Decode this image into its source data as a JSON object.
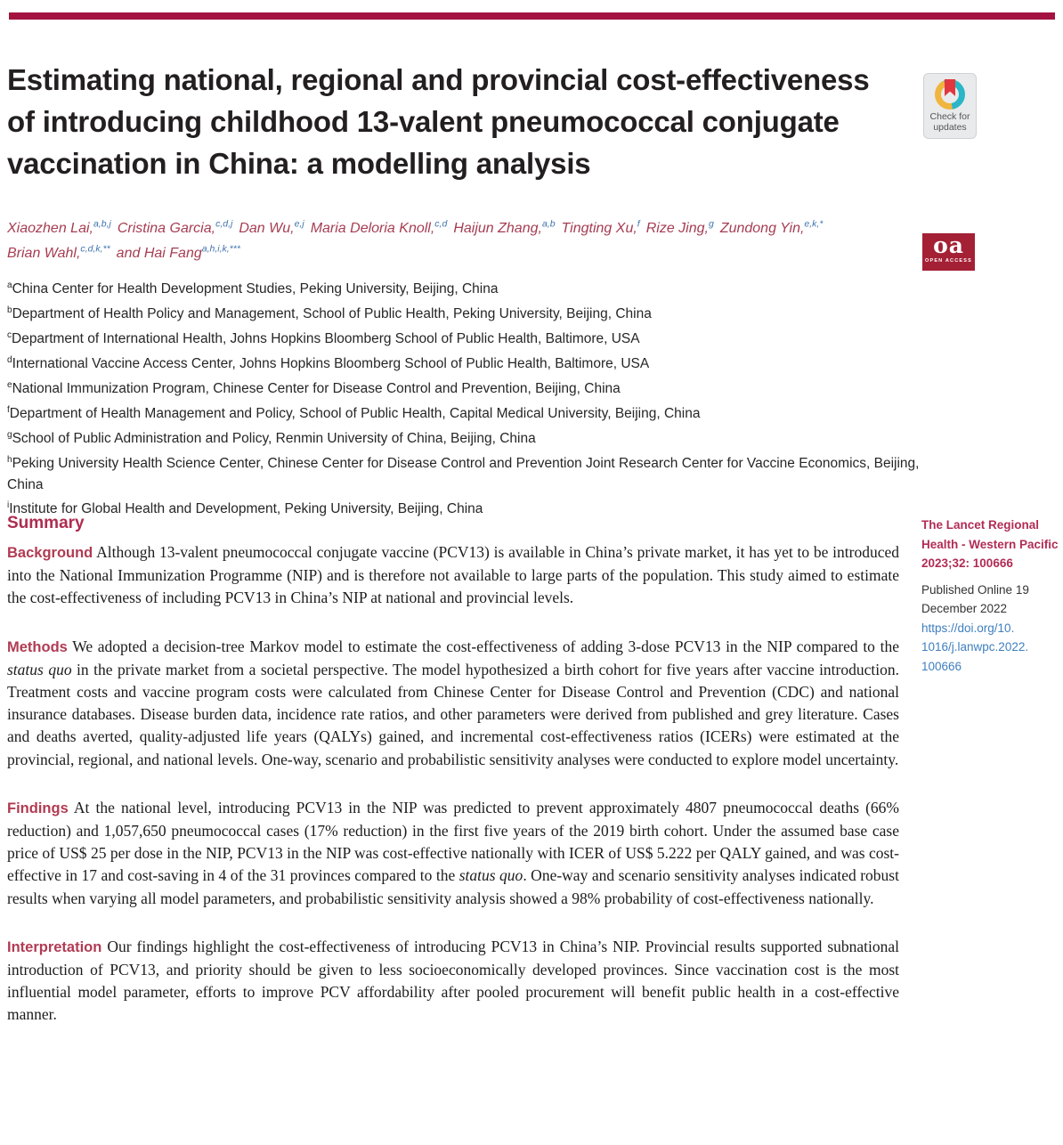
{
  "brand": {
    "bar_color": "#A41340",
    "accent_red": "#B13B53",
    "link_blue": "#3F7FBF",
    "superscript_blue": "#3E74AE",
    "open_access_red": "#A42035"
  },
  "masthead": {
    "title_lines": [
      "Estimating national, regional and provincial cost-effectiveness",
      "of introducing childhood 13-valent pneumococcal conjugate",
      "vaccination in China: a modelling analysis"
    ],
    "crossmark": {
      "line1": "Check for",
      "line2": "updates"
    },
    "open_access": {
      "text": "oa",
      "label": "OPEN ACCESS"
    }
  },
  "authors": {
    "rows": [
      [
        {
          "name": "Xiaozhen Lai,",
          "sup": "a,b,j"
        },
        {
          "name": "Cristina Garcia,",
          "sup": "c,d,j"
        },
        {
          "name": "Dan Wu,",
          "sup": "e,j"
        },
        {
          "name": "Maria Deloria Knoll,",
          "sup": "c,d"
        },
        {
          "name": "Haijun Zhang,",
          "sup": "a,b"
        },
        {
          "name": "Tingting Xu,",
          "sup": "f"
        },
        {
          "name": "Rize Jing,",
          "sup": "g"
        },
        {
          "name": "Zundong Yin,",
          "sup": "e,k,*"
        }
      ],
      [
        {
          "name": "Brian Wahl,",
          "sup": "c,d,k,**"
        },
        {
          "name": "and Hai Fang",
          "sup": "a,h,i,k,***"
        }
      ]
    ]
  },
  "affiliations": [
    {
      "sup": "a",
      "text": "China Center for Health Development Studies, Peking University, Beijing, China"
    },
    {
      "sup": "b",
      "text": "Department of Health Policy and Management, School of Public Health, Peking University, Beijing, China"
    },
    {
      "sup": "c",
      "text": "Department of International Health, Johns Hopkins Bloomberg School of Public Health, Baltimore, USA"
    },
    {
      "sup": "d",
      "text": "International Vaccine Access Center, Johns Hopkins Bloomberg School of Public Health, Baltimore, USA"
    },
    {
      "sup": "e",
      "text": "National Immunization Program, Chinese Center for Disease Control and Prevention, Beijing, China"
    },
    {
      "sup": "f",
      "text": "Department of Health Management and Policy, School of Public Health, Capital Medical University, Beijing, China"
    },
    {
      "sup": "g",
      "text": "School of Public Administration and Policy, Renmin University of China, Beijing, China"
    },
    {
      "sup": "h",
      "text": "Peking University Health Science Center, Chinese Center for Disease Control and Prevention Joint Research Center for Vaccine Economics, Beijing, China"
    },
    {
      "sup": "i",
      "text": "Institute for Global Health and Development, Peking University, Beijing, China"
    }
  ],
  "summary": {
    "heading": "Summary",
    "paragraphs": [
      {
        "label": "Background",
        "segments": [
          {
            "text": "Although 13-valent pneumococcal conjugate vaccine (PCV13) is available in China’s private market, it has yet to be introduced into the National Immunization Programme (NIP) and is therefore not available to large parts of the population. This study aimed to estimate the cost-effectiveness of including PCV13 in China’s NIP at national and provincial levels."
          }
        ]
      },
      {
        "label": "Methods",
        "segments": [
          {
            "text": "We adopted a decision-tree Markov model to estimate the cost-effectiveness of adding 3-dose PCV13 in the NIP compared to the "
          },
          {
            "text": "status quo",
            "italic": true
          },
          {
            "text": " in the private market from a societal perspective. The model hypothesized a birth cohort for five years after vaccine introduction. Treatment costs and vaccine program costs were calculated from Chinese Center for Disease Control and Prevention (CDC) and national insurance databases. Disease burden data, incidence rate ratios, and other parameters were derived from published and grey literature. Cases and deaths averted, quality-adjusted life years (QALYs) gained, and incremental cost-effectiveness ratios (ICERs) were estimated at the provincial, regional, and national levels. One-way, scenario and probabilistic sensitivity analyses were conducted to explore model uncertainty."
          }
        ]
      },
      {
        "label": "Findings",
        "segments": [
          {
            "text": "At the national level, introducing PCV13 in the NIP was predicted to prevent approximately 4807 pneumococcal deaths (66% reduction) and 1,057,650 pneumococcal cases (17% reduction) in the first five years of the 2019 birth cohort. Under the assumed base case price of US$ 25 per dose in the NIP, PCV13 in the NIP was cost-effective nationally with ICER of US$ 5.222 per QALY gained, and was cost-effective in 17 and cost-saving in 4 of the 31 provinces compared to the "
          },
          {
            "text": "status quo",
            "italic": true
          },
          {
            "text": ". One-way and scenario sensitivity analyses indicated robust results when varying all model parameters, and probabilistic sensitivity analysis showed a 98% probability of cost-effectiveness nationally."
          }
        ]
      },
      {
        "label": "Interpretation",
        "segments": [
          {
            "text": "Our findings highlight the cost-effectiveness of introducing PCV13 in China’s NIP. Provincial results supported subnational introduction of PCV13, and priority should be given to less socioeconomically developed provinces. Since vaccination cost is the most influential model parameter, efforts to improve PCV affordability after pooled procurement will benefit public health in a cost-effective manner."
          }
        ]
      }
    ]
  },
  "sidebar": {
    "citation_lines": [
      "The Lancet Regional",
      "Health - Western Pacific",
      "2023;32: 100666"
    ],
    "published_lines": [
      "Published Online 19",
      "December 2022"
    ],
    "doi_lines": [
      "https://doi.org/10.",
      "1016/j.lanwpc.2022.",
      "100666"
    ]
  }
}
